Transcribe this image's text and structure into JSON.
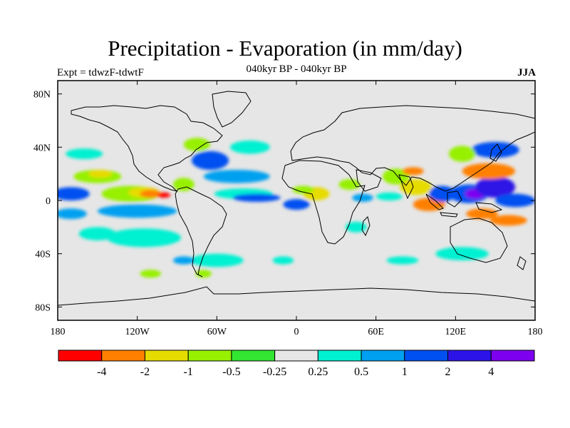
{
  "title": "Precipitation - Evaporation (in mm/day)",
  "subtitle": "040kyr BP - 040kyr BP",
  "left_label": "Expt = tdwzF-tdwtF",
  "right_label": "JJA",
  "map": {
    "lon_range": [
      -180,
      180
    ],
    "lat_range": [
      -90,
      90
    ],
    "lat_ticks": [
      {
        "value": 80,
        "label": "80N"
      },
      {
        "value": 40,
        "label": "40N"
      },
      {
        "value": 0,
        "label": "0"
      },
      {
        "value": -40,
        "label": "40S"
      },
      {
        "value": -80,
        "label": "80S"
      }
    ],
    "lon_ticks": [
      {
        "value": -180,
        "label": "180"
      },
      {
        "value": -120,
        "label": "120W"
      },
      {
        "value": -60,
        "label": "60W"
      },
      {
        "value": 0,
        "label": "0"
      },
      {
        "value": 60,
        "label": "60E"
      },
      {
        "value": 120,
        "label": "120E"
      },
      {
        "value": 180,
        "label": "180"
      }
    ],
    "background_color": "#e6e6e6",
    "coastline_color": "#000000"
  },
  "colorbar": {
    "colors": [
      "#ff0000",
      "#ff8000",
      "#e6dc00",
      "#96f000",
      "#32e632",
      "#e6e6e6",
      "#00f0d2",
      "#00a0f0",
      "#0050f0",
      "#2d14e6",
      "#7d00f0"
    ],
    "labels": [
      "-4",
      "-2",
      "-1",
      "-0.5",
      "-0.25",
      "0.25",
      "0.5",
      "1",
      "2",
      "4"
    ]
  },
  "chart_data": {
    "type": "heatmap",
    "title": "Precipitation - Evaporation (in mm/day)",
    "levels": [
      -4,
      -2,
      -1,
      -0.5,
      -0.25,
      0.25,
      0.5,
      1,
      2,
      4
    ],
    "regions": [
      {
        "lon": -170,
        "lat": 5,
        "rx": 14,
        "ry": 5,
        "color": "#0050f0"
      },
      {
        "lon": -170,
        "lat": -10,
        "rx": 12,
        "ry": 4,
        "color": "#00a0f0"
      },
      {
        "lon": -150,
        "lat": 18,
        "rx": 18,
        "ry": 5,
        "color": "#96f000"
      },
      {
        "lon": -148,
        "lat": 20,
        "rx": 9,
        "ry": 3,
        "color": "#e6dc00"
      },
      {
        "lon": -160,
        "lat": 35,
        "rx": 14,
        "ry": 4,
        "color": "#00f0d2"
      },
      {
        "lon": -125,
        "lat": 5,
        "rx": 22,
        "ry": 6,
        "color": "#96f000"
      },
      {
        "lon": -115,
        "lat": 6,
        "rx": 12,
        "ry": 4,
        "color": "#e6dc00"
      },
      {
        "lon": -110,
        "lat": 5,
        "rx": 8,
        "ry": 3,
        "color": "#ff8000"
      },
      {
        "lon": -100,
        "lat": 4,
        "rx": 5,
        "ry": 2,
        "color": "#ff0000"
      },
      {
        "lon": -120,
        "lat": -8,
        "rx": 30,
        "ry": 5,
        "color": "#00a0f0"
      },
      {
        "lon": -115,
        "lat": -28,
        "rx": 28,
        "ry": 7,
        "color": "#00f0d2"
      },
      {
        "lon": -150,
        "lat": -25,
        "rx": 14,
        "ry": 5,
        "color": "#00f0d2"
      },
      {
        "lon": -85,
        "lat": 12,
        "rx": 8,
        "ry": 5,
        "color": "#96f000"
      },
      {
        "lon": -65,
        "lat": 30,
        "rx": 14,
        "ry": 7,
        "color": "#0050f0"
      },
      {
        "lon": -75,
        "lat": 42,
        "rx": 10,
        "ry": 5,
        "color": "#96f000"
      },
      {
        "lon": -45,
        "lat": 18,
        "rx": 25,
        "ry": 5,
        "color": "#00a0f0"
      },
      {
        "lon": -40,
        "lat": 5,
        "rx": 22,
        "ry": 4,
        "color": "#00f0d2"
      },
      {
        "lon": -30,
        "lat": 2,
        "rx": 18,
        "ry": 3,
        "color": "#0050f0"
      },
      {
        "lon": -60,
        "lat": -45,
        "rx": 20,
        "ry": 5,
        "color": "#00f0d2"
      },
      {
        "lon": -85,
        "lat": -45,
        "rx": 8,
        "ry": 3,
        "color": "#00a0f0"
      },
      {
        "lon": -35,
        "lat": 40,
        "rx": 15,
        "ry": 5,
        "color": "#00f0d2"
      },
      {
        "lon": 0,
        "lat": -3,
        "rx": 10,
        "ry": 4,
        "color": "#0050f0"
      },
      {
        "lon": 15,
        "lat": 5,
        "rx": 10,
        "ry": 5,
        "color": "#e6dc00"
      },
      {
        "lon": 5,
        "lat": 8,
        "rx": 8,
        "ry": 3,
        "color": "#96f000"
      },
      {
        "lon": 40,
        "lat": 12,
        "rx": 8,
        "ry": 4,
        "color": "#96f000"
      },
      {
        "lon": 50,
        "lat": 2,
        "rx": 8,
        "ry": 3,
        "color": "#00a0f0"
      },
      {
        "lon": 45,
        "lat": -20,
        "rx": 8,
        "ry": 4,
        "color": "#00f0d2"
      },
      {
        "lon": 75,
        "lat": 18,
        "rx": 10,
        "ry": 6,
        "color": "#96f000"
      },
      {
        "lon": 70,
        "lat": 3,
        "rx": 10,
        "ry": 3,
        "color": "#00f0d2"
      },
      {
        "lon": 90,
        "lat": 10,
        "rx": 12,
        "ry": 6,
        "color": "#e6dc00"
      },
      {
        "lon": 88,
        "lat": 22,
        "rx": 8,
        "ry": 3,
        "color": "#ff8000"
      },
      {
        "lon": 100,
        "lat": -3,
        "rx": 12,
        "ry": 5,
        "color": "#ff8000"
      },
      {
        "lon": 110,
        "lat": 5,
        "rx": 10,
        "ry": 6,
        "color": "#0050f0"
      },
      {
        "lon": 130,
        "lat": 5,
        "rx": 15,
        "ry": 7,
        "color": "#0050f0"
      },
      {
        "lon": 135,
        "lat": 5,
        "rx": 8,
        "ry": 4,
        "color": "#7d00f0"
      },
      {
        "lon": 150,
        "lat": 10,
        "rx": 15,
        "ry": 8,
        "color": "#2d14e6"
      },
      {
        "lon": 145,
        "lat": 22,
        "rx": 20,
        "ry": 6,
        "color": "#ff8000"
      },
      {
        "lon": 150,
        "lat": 38,
        "rx": 18,
        "ry": 6,
        "color": "#0050f0"
      },
      {
        "lon": 125,
        "lat": 35,
        "rx": 10,
        "ry": 6,
        "color": "#96f000"
      },
      {
        "lon": 140,
        "lat": -10,
        "rx": 12,
        "ry": 4,
        "color": "#ff8000"
      },
      {
        "lon": 160,
        "lat": -15,
        "rx": 14,
        "ry": 4,
        "color": "#ff8000"
      },
      {
        "lon": 125,
        "lat": -40,
        "rx": 20,
        "ry": 5,
        "color": "#00f0d2"
      },
      {
        "lon": 165,
        "lat": 0,
        "rx": 15,
        "ry": 5,
        "color": "#0050f0"
      },
      {
        "lon": -10,
        "lat": -45,
        "rx": 8,
        "ry": 3,
        "color": "#00f0d2"
      },
      {
        "lon": 80,
        "lat": -45,
        "rx": 12,
        "ry": 3,
        "color": "#00f0d2"
      },
      {
        "lon": -110,
        "lat": -55,
        "rx": 8,
        "ry": 3,
        "color": "#96f000"
      },
      {
        "lon": -70,
        "lat": -55,
        "rx": 6,
        "ry": 3,
        "color": "#96f000"
      }
    ]
  }
}
